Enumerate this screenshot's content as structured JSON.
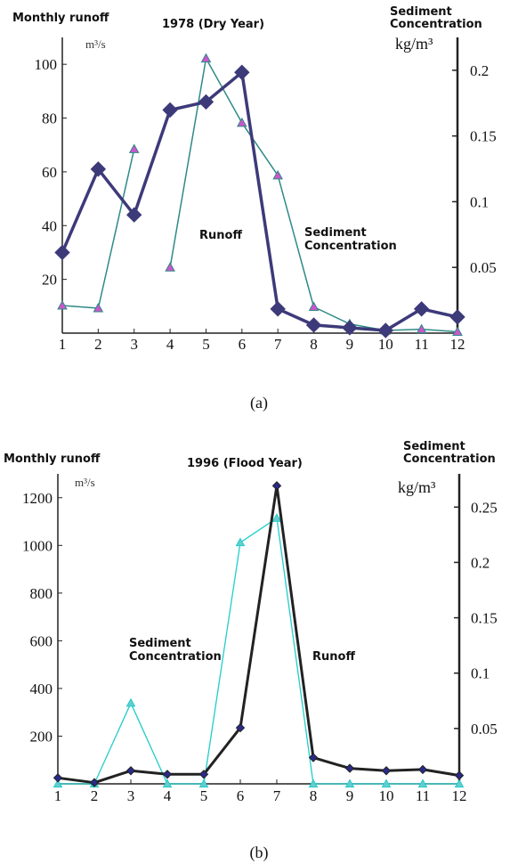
{
  "figure": {
    "subcaptions": [
      "(a)",
      "(b)"
    ]
  },
  "chart_data": [
    {
      "type": "line",
      "title": "1978 (Dry Year)",
      "ylabel": "Monthly runoff",
      "yunit": "m³/s",
      "y2label_lines": [
        "Sediment",
        "Concentration"
      ],
      "y2unit": "kg/m³",
      "x": [
        1,
        2,
        3,
        4,
        5,
        6,
        7,
        8,
        9,
        10,
        11,
        12
      ],
      "xlim": [
        1,
        12
      ],
      "ylim": [
        0,
        110
      ],
      "y2lim": [
        0,
        0.225
      ],
      "yticks": [
        "20",
        "40",
        "60",
        "80",
        "100"
      ],
      "y2ticks": [
        "0.05",
        "0.1",
        "0.15",
        "0.2"
      ],
      "annotations": [
        {
          "text": "Runoff"
        },
        {
          "lines": [
            "Sediment",
            "Concentration"
          ]
        }
      ],
      "series": [
        {
          "name": "Runoff",
          "axis": "left",
          "color": "#3d3a7a",
          "marker": "diamond",
          "values": [
            30,
            61,
            44,
            83,
            86,
            97,
            9,
            3,
            2,
            1,
            9,
            6
          ]
        },
        {
          "name": "Sediment Concentration",
          "axis": "right",
          "color": "#2e8a86",
          "marker_fill": "#cc55cc",
          "marker": "triangle",
          "segments": [
            [
              1,
              3
            ],
            [
              4,
              12
            ]
          ],
          "values": [
            0.021,
            0.019,
            0.14,
            0.05,
            0.209,
            0.16,
            0.12,
            0.02,
            0.007,
            0.002,
            0.003,
            0.001
          ]
        }
      ]
    },
    {
      "type": "line",
      "title": "1996 (Flood Year)",
      "ylabel": "Monthly runoff",
      "yunit": "m³/s",
      "y2label_lines": [
        "Sediment",
        "Concentration"
      ],
      "y2unit": "kg/m³",
      "x": [
        1,
        2,
        3,
        4,
        5,
        6,
        7,
        8,
        9,
        10,
        11,
        12
      ],
      "xlim": [
        1,
        12
      ],
      "ylim": [
        0,
        1300
      ],
      "y2lim": [
        0,
        0.28
      ],
      "yticks": [
        "200",
        "400",
        "600",
        "800",
        "1000",
        "1200"
      ],
      "y2ticks": [
        "0.05",
        "0.1",
        "0.15",
        "0.2",
        "0.25"
      ],
      "annotations": [
        {
          "lines": [
            "Sediment",
            "Concentration"
          ]
        },
        {
          "text": "Runoff"
        }
      ],
      "series": [
        {
          "name": "Runoff",
          "axis": "left",
          "color": "#222222",
          "marker_fill": "#2a2a8a",
          "marker": "diamond",
          "values": [
            25,
            5,
            55,
            40,
            40,
            235,
            1250,
            110,
            65,
            55,
            60,
            35
          ]
        },
        {
          "name": "Sediment Concentration",
          "axis": "right",
          "color": "#22cccc",
          "marker_fill": "#66cccc",
          "marker": "triangle",
          "values": [
            0.0,
            0.0,
            0.073,
            0.0,
            0.0,
            0.218,
            0.24,
            0.0,
            0.0,
            0.0,
            0.0,
            0.0
          ]
        }
      ]
    }
  ]
}
